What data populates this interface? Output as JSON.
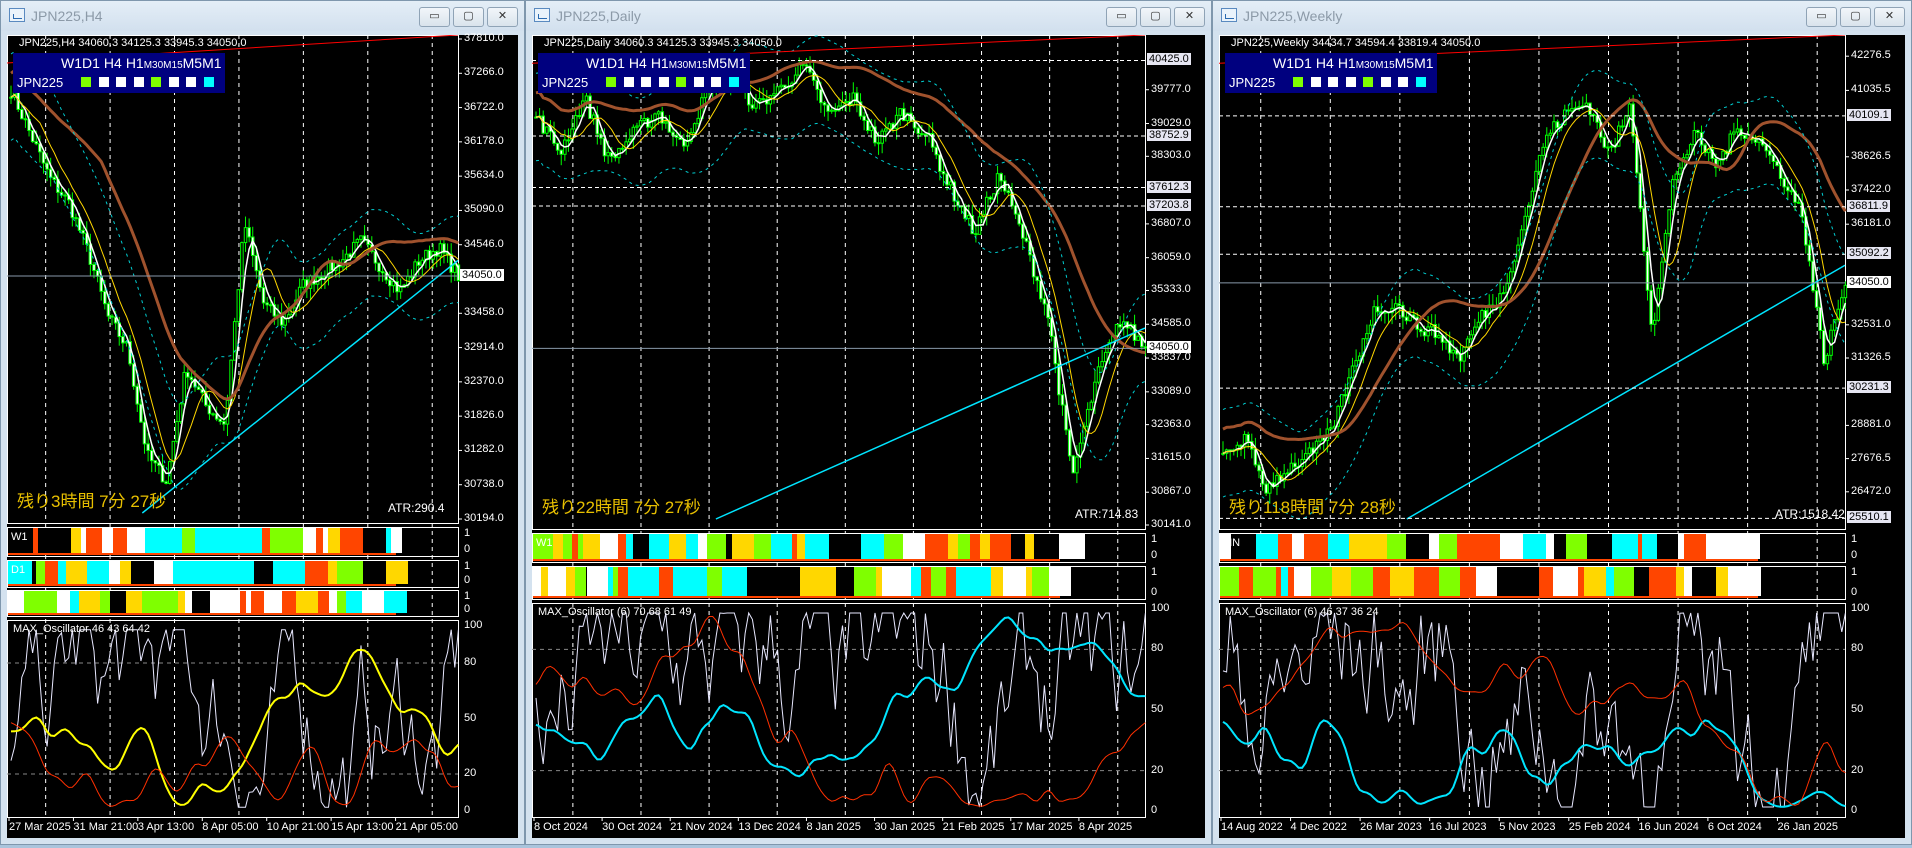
{
  "timeframe_panel": {
    "symbol": "JPN225",
    "timeframes": [
      {
        "label": "W1",
        "small": false
      },
      {
        "label": "D1",
        "small": false
      },
      {
        "label": "H4",
        "small": false
      },
      {
        "label": "H1",
        "small": false
      },
      {
        "label": "M30",
        "small": true
      },
      {
        "label": "M15",
        "small": true
      },
      {
        "label": "M5",
        "small": false
      },
      {
        "label": "M1",
        "small": false
      }
    ],
    "status_colors": [
      "#7fff00",
      "#ffffff",
      "#ffffff",
      "#ffffff",
      "#7fff00",
      "#ffffff",
      "#ffffff",
      "#00ffff"
    ]
  },
  "colors": {
    "up": "#00ff00",
    "ma_fast": "#ffffff",
    "ma_mid": "#ffd700",
    "ma_slow": "#a0522d",
    "band": "#00ced1",
    "trend": "#ff0000",
    "support": "#00e5ff",
    "strip_palette": [
      "#ff4500",
      "#ffd700",
      "#ffffff",
      "#7fff00",
      "#00ffff",
      "#000000"
    ]
  },
  "window_buttons": {
    "minimize": "▭",
    "maximize": "▢",
    "close": "✕"
  },
  "windows": [
    {
      "title": "JPN225,H4",
      "header": "JPN225,H4  34060.3 34125.3 33945.3 34050.0",
      "countdown": "残り3時間 7分 27秒",
      "atr": "ATR:290.4",
      "price_range": [
        30194.0,
        37810.0
      ],
      "price_axis": [
        "37810.0",
        "37266.0",
        "36722.0",
        "36178.0",
        "35634.0",
        "35090.0",
        "34546.0",
        "33458.0",
        "32914.0",
        "32370.0",
        "31826.0",
        "31282.0",
        "30738.0",
        "30194.0"
      ],
      "highlighted_prices": [],
      "current_price": "34050.0",
      "strips": [
        {
          "label": "W1"
        },
        {
          "label": "D1"
        },
        {
          "label": ""
        }
      ],
      "strip_axis": [
        "1",
        "0"
      ],
      "oscillator": {
        "label": "MAX_Oscillator 46 43 64 42",
        "axis": [
          "100",
          "80",
          "50",
          "20",
          "0"
        ]
      },
      "date_axis": [
        "27 Mar 2025",
        "31 Mar 21:00",
        "3 Apr 13:00",
        "8 Apr 05:00",
        "10 Apr 21:00",
        "15 Apr 13:00",
        "21 Apr 05:00"
      ],
      "price_path": [
        37000,
        36300,
        35600,
        35200,
        34400,
        33400,
        32900,
        31200,
        30800,
        32600,
        32000,
        31700,
        34900,
        33600,
        33300,
        33900,
        34100,
        34300,
        34600,
        34200,
        33800,
        34300,
        34500,
        34050
      ]
    },
    {
      "title": "JPN225,Daily",
      "header": "JPN225,Daily  34060.3 34125.3 33945.3 34050.0",
      "countdown": "残り22時間 7分 27秒",
      "atr": "ATR:714.83",
      "price_range": [
        30141.0,
        40900.0
      ],
      "price_axis": [
        "39777.0",
        "39029.0",
        "38303.0",
        "36807.0",
        "36059.0",
        "35333.0",
        "34585.0",
        "33837.0",
        "33089.0",
        "32363.0",
        "31615.0",
        "30867.0",
        "30141.0"
      ],
      "highlighted_prices": [
        "40425.0",
        "38752.9",
        "37612.3",
        "37203.8"
      ],
      "current_price": "34050.0",
      "strips": [
        {
          "label": "W1"
        },
        {
          "label": ""
        }
      ],
      "strip_axis": [
        "1",
        "0"
      ],
      "oscillator": {
        "label": "MAX_Oscillator (6) 70 68 61 49",
        "axis": [
          "100",
          "80",
          "50",
          "20",
          "0"
        ]
      },
      "date_axis": [
        "8 Oct 2024",
        "30 Oct 2024",
        "21 Nov 2024",
        "13 Dec 2024",
        "8 Jan 2025",
        "30 Jan 2025",
        "21 Feb 2025",
        "17 Mar 2025",
        "8 Apr 2025"
      ],
      "price_path": [
        39200,
        38400,
        39600,
        38200,
        38800,
        39300,
        38500,
        39700,
        40100,
        39400,
        39800,
        40300,
        39200,
        39600,
        38600,
        39300,
        38800,
        37600,
        36600,
        37900,
        36500,
        34800,
        31200,
        33400,
        34700,
        34050
      ]
    },
    {
      "title": "JPN225,Weekly",
      "header": "JPN225,Weekly  34434.7 34594.4 33819.4 34050.0",
      "countdown": "残り118時間 7分 28秒",
      "atr": "ATR:1518.42",
      "price_range": [
        25267.5,
        42900.0
      ],
      "price_axis": [
        "42276.5",
        "41035.5",
        "38626.5",
        "37422.0",
        "36181.0",
        "32531.0",
        "31326.5",
        "28881.0",
        "27676.5",
        "26472.0"
      ],
      "highlighted_prices": [
        "40109.1",
        "36811.9",
        "35092.2",
        "30231.3",
        "25510.1"
      ],
      "current_price": "34050.0",
      "strips": [
        {
          "label": "MN"
        },
        {
          "label": ""
        }
      ],
      "strip_axis": [
        "1",
        "0"
      ],
      "oscillator": {
        "label": "MAX_Oscillator (6) 46 37 36 24",
        "axis": [
          "100",
          "80",
          "50",
          "20",
          "0"
        ]
      },
      "date_axis": [
        "14 Aug 2022",
        "4 Dec 2022",
        "26 Mar 2023",
        "16 Jul 2023",
        "5 Nov 2023",
        "25 Feb 2024",
        "16 Jun 2024",
        "6 Oct 2024",
        "26 Jan 2025"
      ],
      "price_path": [
        27800,
        28400,
        26600,
        27300,
        27800,
        28600,
        30800,
        33000,
        33300,
        32500,
        32200,
        31300,
        32800,
        33600,
        36200,
        39300,
        40200,
        40600,
        38700,
        40500,
        32200,
        37900,
        39400,
        38300,
        39700,
        39200,
        38000,
        36500,
        31200,
        34050
      ]
    }
  ]
}
